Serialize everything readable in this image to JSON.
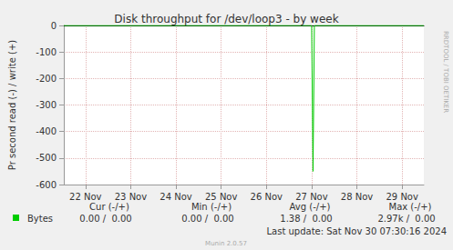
{
  "chart_data": {
    "type": "line",
    "title": "Disk throughput for /dev/loop3 - by week",
    "y_label": "Pr second read (-) / write (+)",
    "x": [
      21.52,
      27.0,
      27.03,
      27.06,
      29.48
    ],
    "series": [
      {
        "name": "Bytes",
        "color": "#00cc00",
        "values": [
          0,
          0,
          -550,
          0,
          0
        ]
      }
    ],
    "xlim": [
      21.52,
      29.48
    ],
    "xticks": [
      {
        "value": 22,
        "label": "22 Nov"
      },
      {
        "value": 23,
        "label": "23 Nov"
      },
      {
        "value": 24,
        "label": "24 Nov"
      },
      {
        "value": 25,
        "label": "25 Nov"
      },
      {
        "value": 26,
        "label": "26 Nov"
      },
      {
        "value": 27,
        "label": "27 Nov"
      },
      {
        "value": 28,
        "label": "28 Nov"
      },
      {
        "value": 29,
        "label": "29 Nov"
      }
    ],
    "ylim": [
      -600,
      0
    ],
    "yticks": [
      -600,
      -500,
      -400,
      -300,
      -200,
      -100,
      0
    ],
    "grid": true,
    "stats": {
      "columns": [
        "Cur (-/+)",
        "Min (-/+)",
        "Avg (-/+)",
        "Max (-/+)"
      ],
      "cells": [
        "0.00 /  0.00",
        "0.00 /  0.00",
        "1.38 /  0.00",
        "2.97k /  0.00"
      ]
    },
    "footer": "Last update: Sat Nov 30 07:30:16 2024",
    "credit": "Munin 2.0.57",
    "side_text": "RRDTOOL / TOBI OETIKER"
  }
}
